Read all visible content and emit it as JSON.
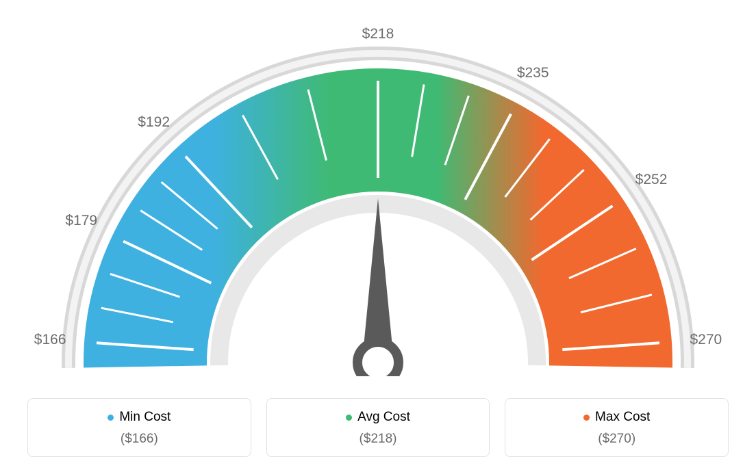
{
  "gauge": {
    "type": "gauge",
    "min": 166,
    "max": 270,
    "avg": 218,
    "tick_values": [
      166,
      179,
      192,
      218,
      235,
      252,
      270
    ],
    "tick_labels": [
      "$166",
      "$179",
      "$192",
      "$218",
      "$235",
      "$252",
      "$270"
    ],
    "minor_ticks_between": 2,
    "arc_start_deg": 180,
    "arc_end_deg": 0,
    "outer_radius": 430,
    "inner_radius": 250,
    "label_radius": 480,
    "colors": {
      "left": "#3eb1e0",
      "middle": "#3fba74",
      "right": "#f1692f",
      "outline": "#d8d8d8",
      "tick": "#ffffff",
      "needle": "#5a5a5a",
      "background": "#ffffff",
      "label_text": "#6b6b6b"
    },
    "needle_value": 218,
    "outer_band_width": 14,
    "label_fontsize": 21
  },
  "legend": {
    "items": [
      {
        "title": "Min Cost",
        "value": "($166)",
        "color": "#3eb1e0"
      },
      {
        "title": "Avg Cost",
        "value": "($218)",
        "color": "#3fba74"
      },
      {
        "title": "Max Cost",
        "value": "($270)",
        "color": "#f1692f"
      }
    ],
    "border_color": "#e2e2e2",
    "border_radius": 8,
    "title_fontsize": 19,
    "value_fontsize": 19,
    "value_color": "#6b6b6b"
  }
}
